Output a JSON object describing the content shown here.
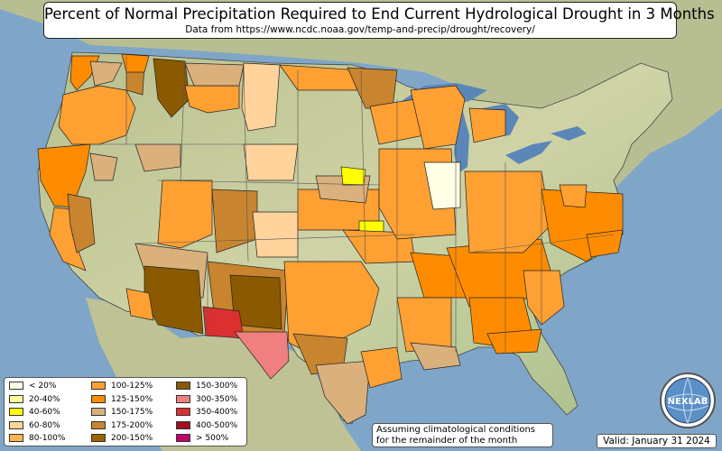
{
  "header": {
    "title": "Percent of Normal Precipitation Required to End Current Hydrological Drought in 3 Months",
    "subtitle": "Data from https://www.ncdc.noaa.gov/temp-and-precip/drought/recovery/"
  },
  "legend": {
    "items": [
      {
        "label": "< 20%",
        "color": "#ffffe6"
      },
      {
        "label": "20-40%",
        "color": "#ffff9a"
      },
      {
        "label": "40-60%",
        "color": "#ffff00"
      },
      {
        "label": "60-80%",
        "color": "#ffd39b"
      },
      {
        "label": "80-100%",
        "color": "#ffb652"
      },
      {
        "label": "100-125%",
        "color": "#ffa033"
      },
      {
        "label": "125-150%",
        "color": "#ff8c00"
      },
      {
        "label": "150-175%",
        "color": "#dab07c"
      },
      {
        "label": "175-200%",
        "color": "#c8842e"
      },
      {
        "label": "200-150%",
        "color": "#9c6400"
      },
      {
        "label": "150-300%",
        "color": "#8b5a00"
      },
      {
        "label": "300-350%",
        "color": "#f08080"
      },
      {
        "label": "350-400%",
        "color": "#dc3030"
      },
      {
        "label": "400-500%",
        "color": "#a01020"
      },
      {
        "label": "> 500%",
        "color": "#c0006a"
      }
    ]
  },
  "note": {
    "line1": "Assuming climatological conditions",
    "line2": "for the remainder of the month"
  },
  "valid": "Valid: January 31 2024",
  "logo": {
    "text": "NEXLAB",
    "icon": "nexlab-globe-logo"
  },
  "colors": {
    "ocean": "#7fa6c8",
    "land": "#c9cfa0",
    "great_lakes": "#5b86b8"
  }
}
